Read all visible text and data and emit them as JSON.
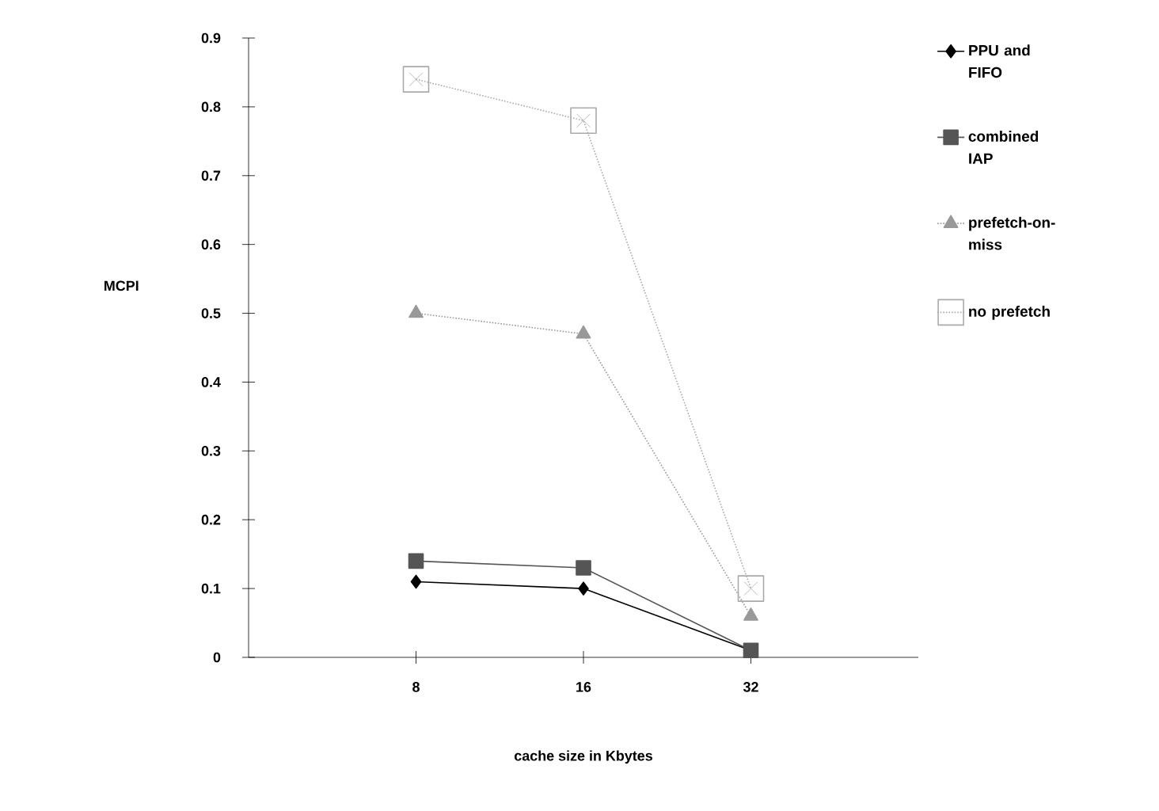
{
  "chart_data": {
    "type": "line",
    "xlabel": "cache size in Kbytes",
    "ylabel": "MCPI",
    "categories": [
      "8",
      "16",
      "32"
    ],
    "ylim": [
      0,
      0.9
    ],
    "yticks": [
      0,
      0.1,
      0.2,
      0.3,
      0.4,
      0.5,
      0.6,
      0.7,
      0.8,
      0.9
    ],
    "grid": false,
    "legend": "right",
    "series": [
      {
        "name": "PPU and FIFO",
        "color": "#000000",
        "marker": "diamond",
        "line_style": "solid",
        "values": [
          0.11,
          0.1,
          0.01
        ]
      },
      {
        "name": "combined IAP",
        "color": "#555555",
        "marker": "square",
        "line_style": "solid",
        "values": [
          0.14,
          0.13,
          0.01
        ]
      },
      {
        "name": "prefetch-on-miss",
        "color": "#999999",
        "marker": "triangle",
        "line_style": "dotted",
        "values": [
          0.5,
          0.47,
          0.06
        ]
      },
      {
        "name": "no prefetch",
        "color": "#aaaaaa",
        "marker": "cross",
        "line_style": "dotted",
        "values": [
          0.84,
          0.78,
          0.1
        ]
      }
    ]
  }
}
